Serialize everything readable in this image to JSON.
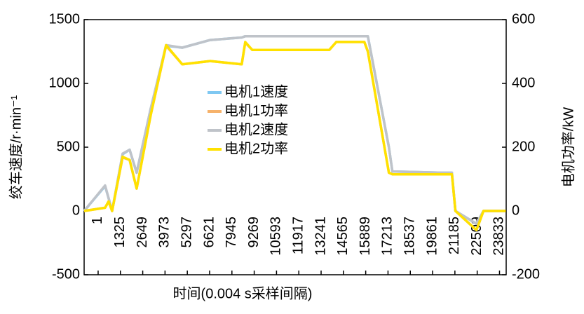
{
  "chart_data": {
    "type": "line",
    "x_label": "时间(0.004 s采样间隔)",
    "y_label": "绞车速度/r·min⁻¹",
    "y2_label": "电机功率/kW",
    "x": [
      -830,
      416,
      624,
      832,
      1456,
      1872,
      2288,
      3120,
      4035,
      4992,
      6656,
      8528,
      8736,
      9152,
      13728,
      14144,
      15808,
      16016,
      17264,
      17472,
      20384,
      21008,
      21216,
      22464,
      22880,
      24211
    ],
    "series": [
      {
        "name": "电机1速度",
        "color": "#7fc8f2",
        "axis": "y",
        "values": [
          0,
          195,
          100,
          0,
          445,
          480,
          300,
          800,
          1295,
          1280,
          1340,
          1360,
          1370,
          1370,
          1370,
          1370,
          1370,
          1370,
          500,
          310,
          300,
          300,
          0,
          -100,
          0,
          0
        ]
      },
      {
        "name": "电机1功率",
        "color": "#f6b26b",
        "axis": "y2",
        "values": [
          0,
          10,
          30,
          0,
          168,
          160,
          70,
          300,
          518,
          460,
          470,
          460,
          528,
          505,
          505,
          530,
          530,
          500,
          120,
          115,
          115,
          115,
          0,
          -60,
          0,
          0
        ]
      },
      {
        "name": "电机2速度",
        "color": "#bfc3c9",
        "axis": "y",
        "values": [
          0,
          200,
          100,
          0,
          450,
          480,
          300,
          800,
          1300,
          1280,
          1340,
          1360,
          1370,
          1370,
          1370,
          1370,
          1370,
          1370,
          500,
          310,
          300,
          300,
          0,
          -100,
          0,
          0
        ]
      },
      {
        "name": "电机2功率",
        "color": "#ffe100",
        "axis": "y2",
        "values": [
          0,
          10,
          30,
          0,
          170,
          160,
          70,
          300,
          520,
          460,
          470,
          460,
          530,
          505,
          505,
          530,
          530,
          500,
          120,
          115,
          115,
          115,
          0,
          -60,
          0,
          0
        ]
      }
    ],
    "xlim": [
      -830,
      24230
    ],
    "xticks": [
      1,
      1325,
      2649,
      3973,
      5297,
      6621,
      7945,
      9269,
      10593,
      11917,
      13241,
      14565,
      15889,
      17213,
      18537,
      19861,
      21185,
      22509,
      23833
    ],
    "ylim": [
      -500,
      1500
    ],
    "yticks": [
      -500,
      0,
      500,
      1000,
      1500
    ],
    "y2lim": [
      -200,
      600
    ],
    "y2ticks": [
      -200,
      0,
      200,
      400,
      600
    ],
    "grid": false
  }
}
